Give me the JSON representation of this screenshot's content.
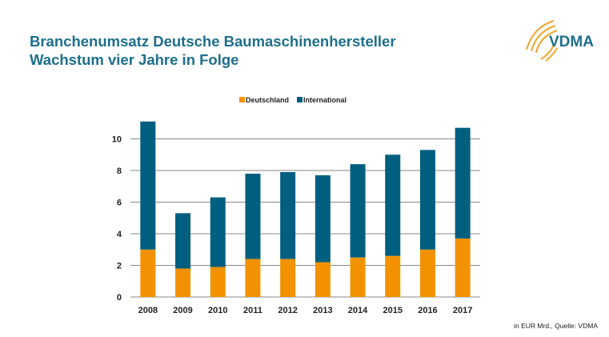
{
  "header": {
    "title_line1": "Branchenumsatz Deutsche Baumaschinenhersteller",
    "title_line2": "Wachstum vier Jahre in Folge",
    "logo_text": "VDMA"
  },
  "footer": {
    "source": "in EUR Mrd., Quelle: VDMA"
  },
  "chart_data": {
    "type": "bar",
    "stacked": true,
    "categories": [
      "2008",
      "2009",
      "2010",
      "2011",
      "2012",
      "2013",
      "2014",
      "2015",
      "2016",
      "2017"
    ],
    "series": [
      {
        "name": "Deutschland",
        "color": "#f39200",
        "values": [
          3.0,
          1.8,
          1.9,
          2.4,
          2.4,
          2.2,
          2.5,
          2.6,
          3.0,
          3.7
        ]
      },
      {
        "name": "International",
        "color": "#005f7f",
        "values": [
          8.1,
          3.5,
          4.4,
          5.4,
          5.5,
          5.5,
          5.9,
          6.4,
          6.3,
          7.0
        ]
      }
    ],
    "ylim": [
      0,
      12
    ],
    "yticks": [
      0,
      2,
      4,
      6,
      8,
      10
    ],
    "grid": true,
    "legend": "top-center"
  }
}
